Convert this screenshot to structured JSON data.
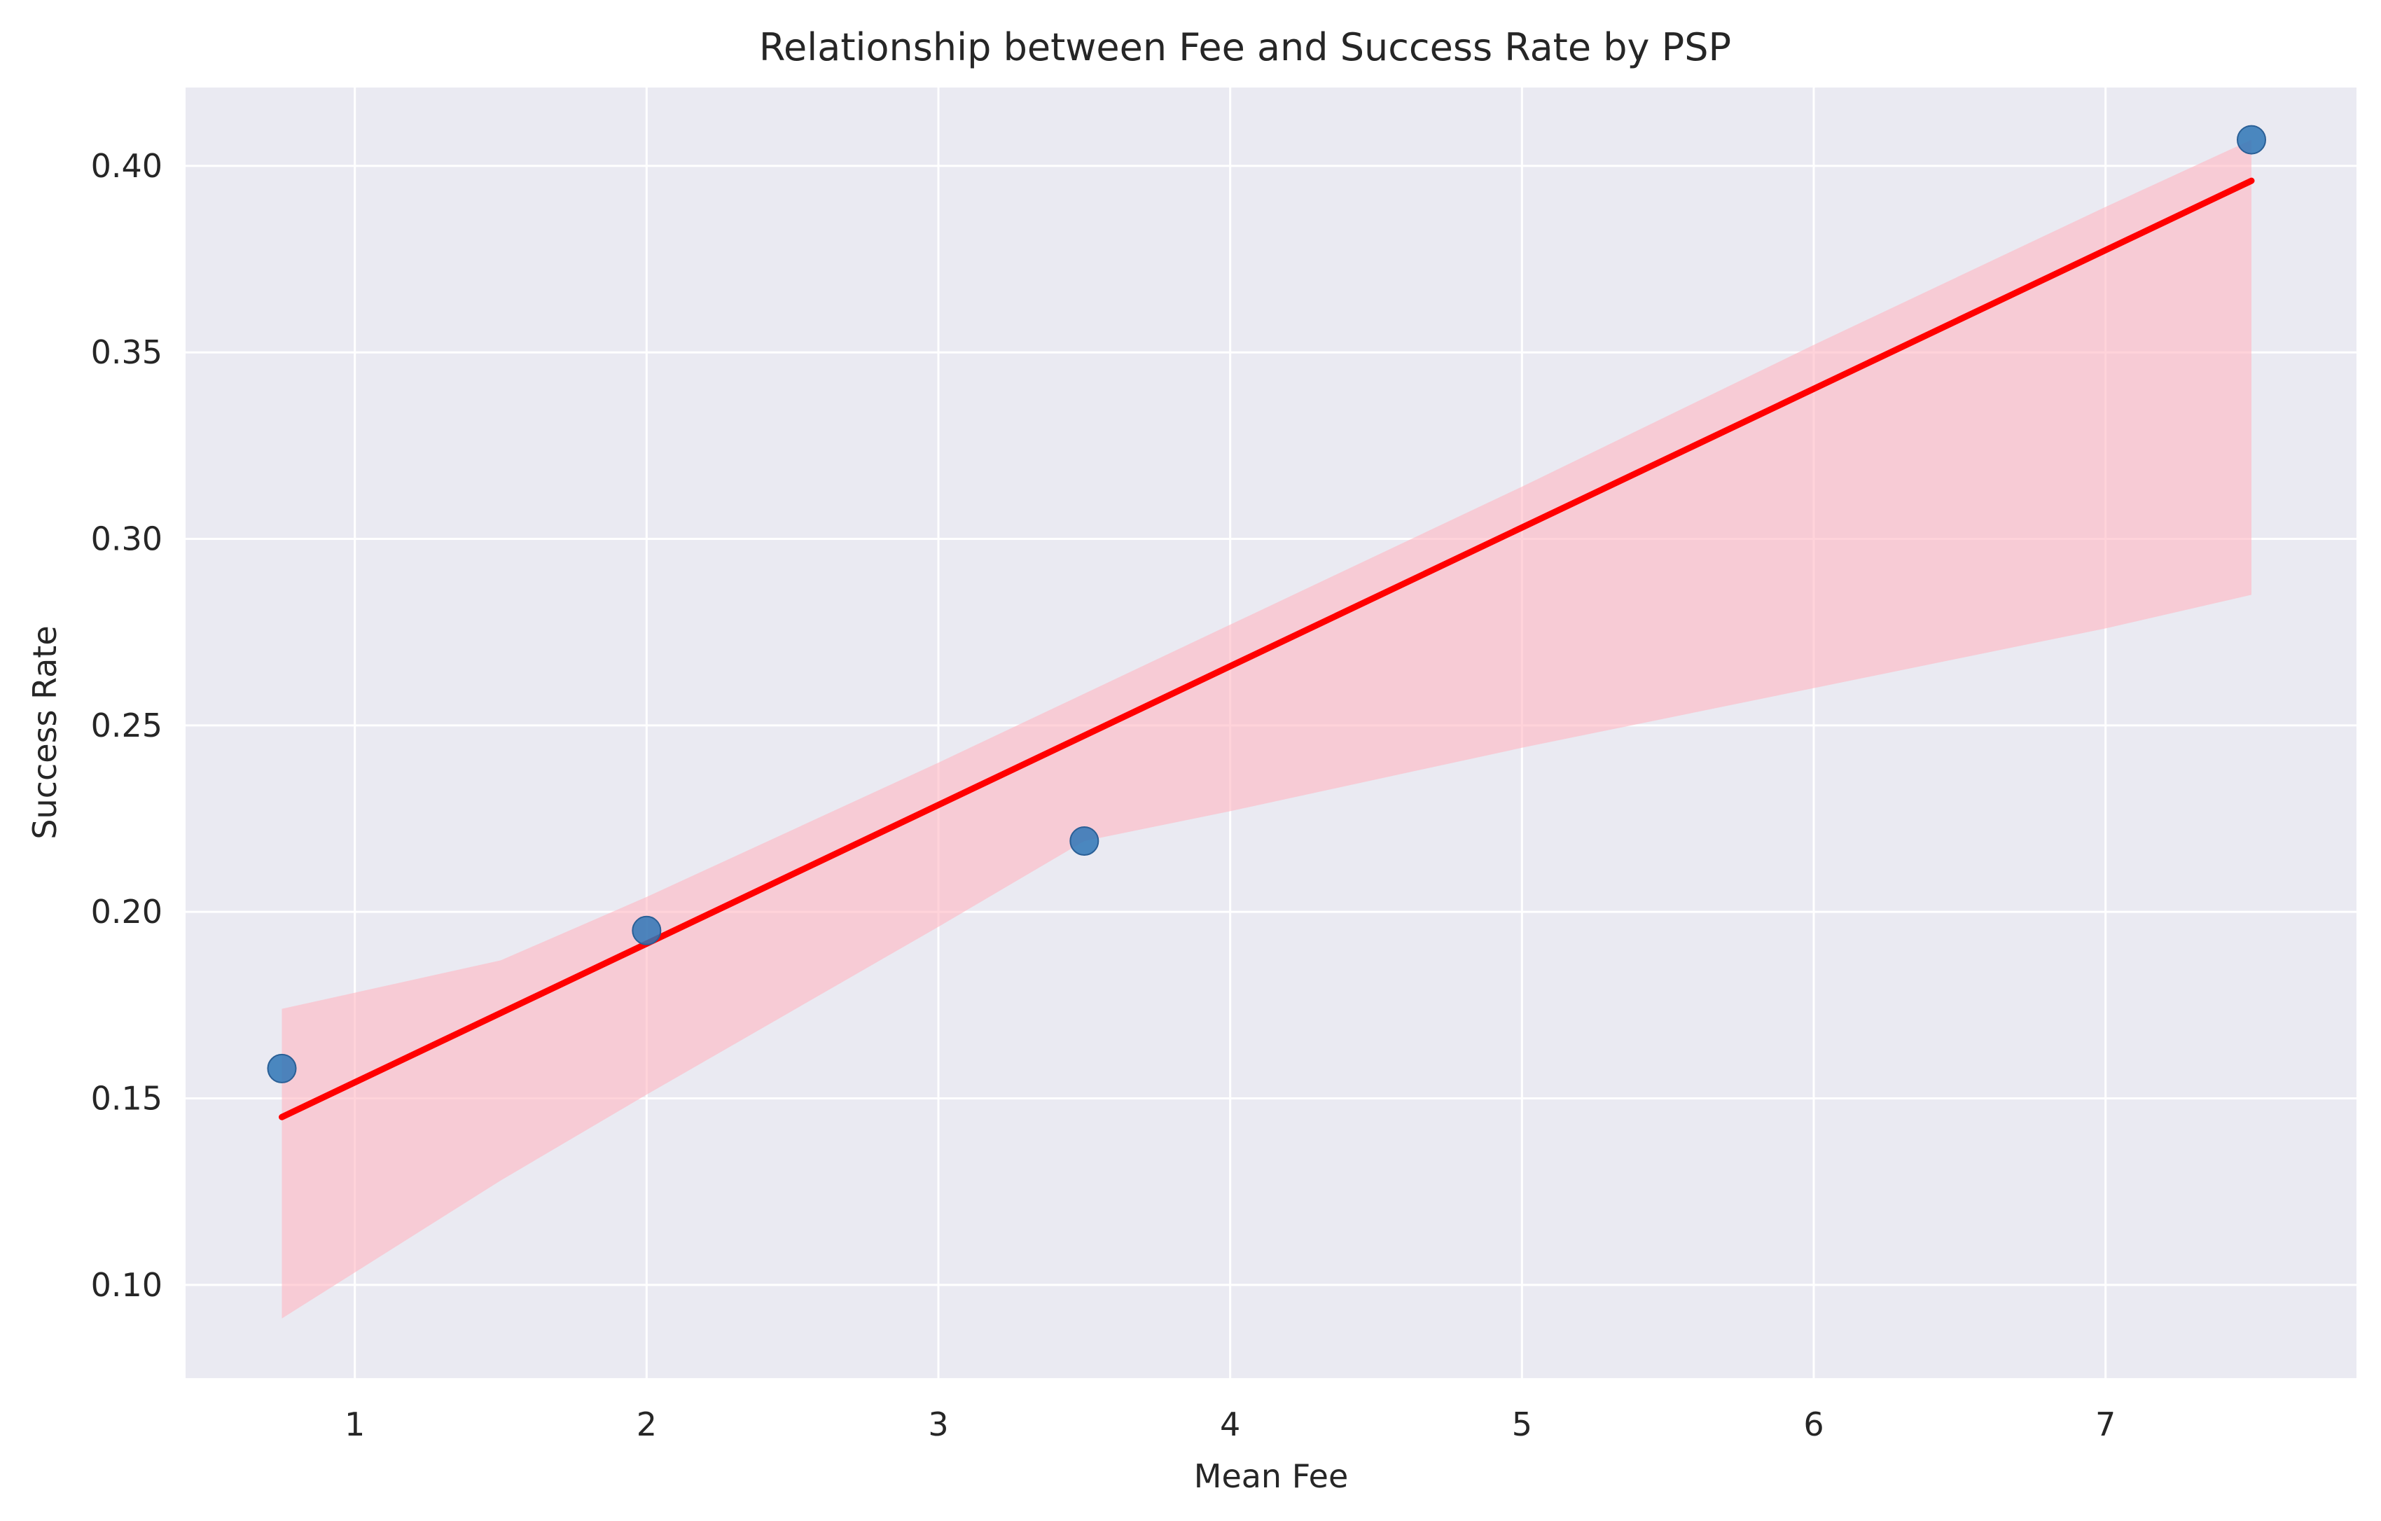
{
  "chart_data": {
    "type": "scatter",
    "title": "Relationship between Fee and Success Rate by PSP",
    "xlabel": "Mean Fee",
    "ylabel": "Success Rate",
    "xlim": [
      0.42,
      7.86
    ],
    "ylim": [
      0.075,
      0.421
    ],
    "xticks": [
      1,
      2,
      3,
      4,
      5,
      6,
      7
    ],
    "yticks": [
      0.1,
      0.15,
      0.2,
      0.25,
      0.3,
      0.35,
      0.4
    ],
    "xtick_labels": [
      "1",
      "2",
      "3",
      "4",
      "5",
      "6",
      "7"
    ],
    "ytick_labels": [
      "0.10",
      "0.15",
      "0.20",
      "0.25",
      "0.30",
      "0.35",
      "0.40"
    ],
    "grid": true,
    "background_color": "#eaeaf2",
    "points": {
      "x": [
        0.75,
        2.0,
        3.5,
        7.5
      ],
      "y": [
        0.158,
        0.195,
        0.219,
        0.407
      ],
      "color": "#2e75b6"
    },
    "regression_line": {
      "x": [
        0.75,
        7.5
      ],
      "y": [
        0.145,
        0.396
      ],
      "color": "#ff0000"
    },
    "confidence_band": {
      "color": "#ffb6c1",
      "upper": [
        {
          "x": 0.75,
          "y": 0.174
        },
        {
          "x": 1.5,
          "y": 0.187
        },
        {
          "x": 2.0,
          "y": 0.204
        },
        {
          "x": 3.0,
          "y": 0.24
        },
        {
          "x": 4.0,
          "y": 0.277
        },
        {
          "x": 5.0,
          "y": 0.314
        },
        {
          "x": 6.0,
          "y": 0.352
        },
        {
          "x": 7.0,
          "y": 0.389
        },
        {
          "x": 7.5,
          "y": 0.407
        }
      ],
      "lower": [
        {
          "x": 0.75,
          "y": 0.091
        },
        {
          "x": 1.5,
          "y": 0.128
        },
        {
          "x": 2.0,
          "y": 0.151
        },
        {
          "x": 3.0,
          "y": 0.196
        },
        {
          "x": 3.5,
          "y": 0.219
        },
        {
          "x": 4.0,
          "y": 0.227
        },
        {
          "x": 5.0,
          "y": 0.244
        },
        {
          "x": 6.0,
          "y": 0.26
        },
        {
          "x": 7.0,
          "y": 0.276
        },
        {
          "x": 7.5,
          "y": 0.285
        }
      ]
    }
  }
}
